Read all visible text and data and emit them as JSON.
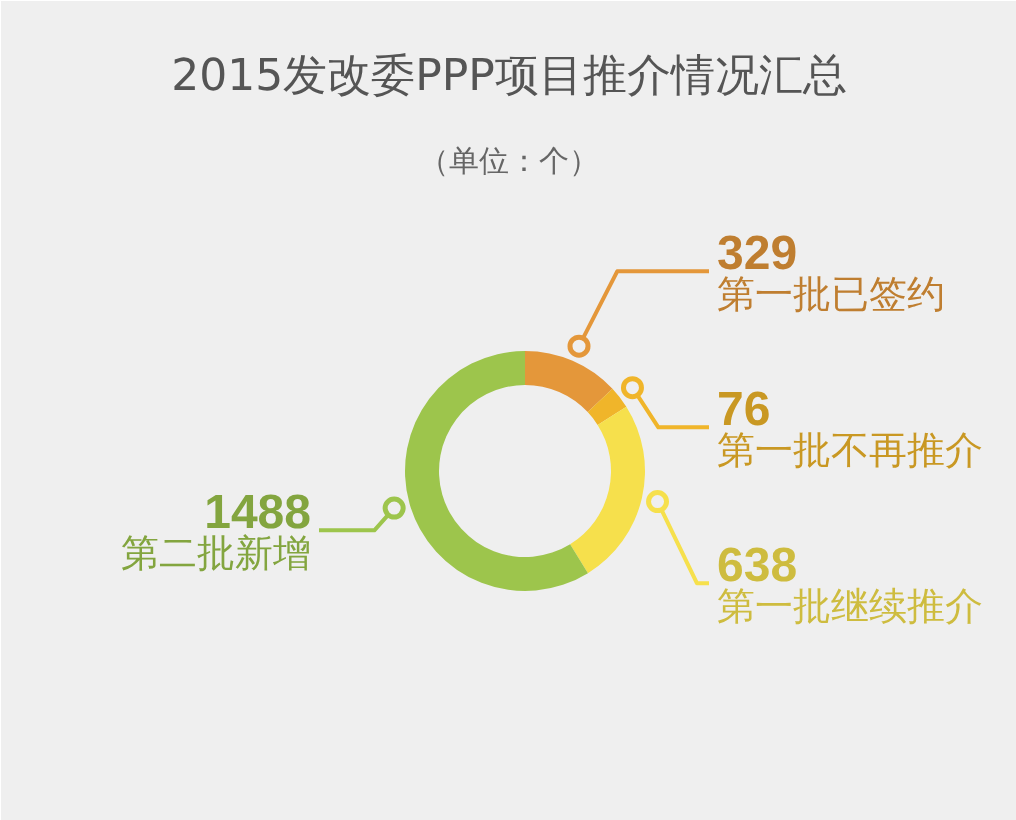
{
  "chart_data": {
    "type": "donut",
    "title": "2015发改委PPP项目推介情况汇总",
    "subtitle": "（单位：个）",
    "categories": [
      "第一批已签约",
      "第一批不再推介",
      "第一批继续推介",
      "第二批新增"
    ],
    "values": [
      329,
      76,
      638,
      1488
    ],
    "colors": [
      "#e4973a",
      "#f0b52a",
      "#f6e04c",
      "#9dc54c"
    ],
    "data_labels": true
  }
}
